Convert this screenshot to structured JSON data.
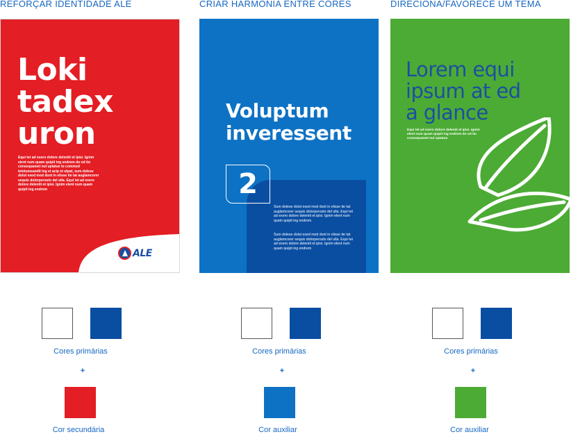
{
  "columns": [
    {
      "title": "REFORÇAR IDENTIDADE ALE",
      "card": {
        "heading": [
          "Loki",
          "tadex",
          "uron"
        ],
        "body": "Equi tet ad exero dolore deleniti et ipisi. Ignim elent num quam quipit ing endrem do od tio consequamet nul uptatue to commod tetetumsandit ing et acip et utpat, sum dolese dolut esed mod dunt in elisse tie tat auglamcorer sequis dolorperosto del ulla. Equi tet ad exero dolore deleniti et ipisi. Ignim elent num quam quipit ing endrem",
        "logo_text": "ALE"
      },
      "primary_label": "Cores primárias",
      "plus": "+",
      "secondary_label": "Cor secundária",
      "secondary_color": "#e31e24"
    },
    {
      "title": "CRIAR HARMONIA ENTRE CORES",
      "card": {
        "heading": [
          "Voluptum",
          "inveressent"
        ],
        "number": "2",
        "body1": "Sum dolese dolut esed mod dunt in elisse tie tat auglamcorer sequis dolorperosto del ulla. Equi tet ad exero dolore deleniti et ipisi. Ignim elent num quam quipit ing endrem",
        "body2": "Sum dolese dolut esed mod dunt in elisse tie tat auglamcorer sequis dolorperosto del ulla. Equi tet ad exero dolore deleniti et ipisi. Ignim elent num quam quipit ing endrem"
      },
      "primary_label": "Cores primárias",
      "plus": "+",
      "secondary_label": "Cor auxiliar",
      "secondary_color": "#0d72c4"
    },
    {
      "title": "DIRECIONA/FAVORECE UM TEMA",
      "card": {
        "heading": [
          "Lorem equi",
          "ipsum at ed",
          "a glance"
        ],
        "body": "Equi tet ad exero dolore deleniti et ipisi. Ignim elent num quam quipit ing endrem do od tio consequamet nul uptatue.",
        "icon": "leaf-icon"
      },
      "primary_label": "Cores primárias",
      "plus": "+",
      "secondary_label": "Cor auxiliar",
      "secondary_color": "#4cab35"
    }
  ],
  "colors": {
    "brand_red": "#e31e24",
    "brand_blue": "#0a4ea2",
    "aux_blue": "#0d72c4",
    "aux_green": "#4cab35",
    "white": "#ffffff"
  }
}
